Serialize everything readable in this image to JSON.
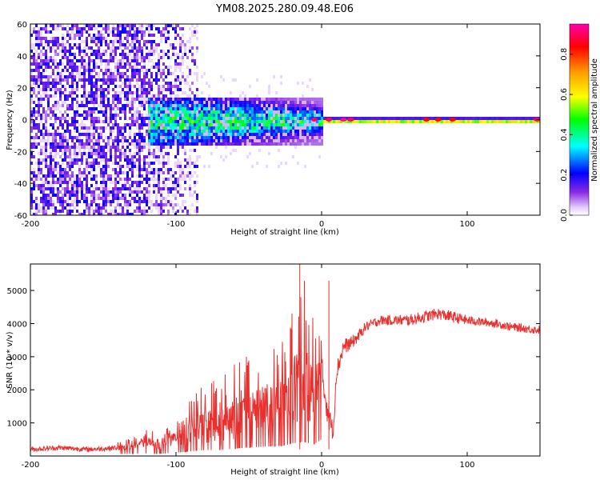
{
  "title": "YM08.2025.280.09.48.E06",
  "chart_data": [
    {
      "type": "heatmap",
      "xlabel": "Height of straight line (km)",
      "ylabel": "Frequency (Hz)",
      "xlim": [
        -200,
        150
      ],
      "ylim": [
        -60,
        60
      ],
      "xticks": [
        -200,
        -100,
        0,
        100
      ],
      "yticks": [
        60,
        40,
        20,
        0,
        -20,
        -40,
        -60
      ],
      "colorbar": {
        "label": "Normalized spectral amplitude",
        "range": [
          0,
          0.95
        ],
        "ticks": [
          0.0,
          0.2,
          0.4,
          0.6,
          0.8
        ],
        "tick_labels": [
          "0.0",
          "0.2",
          "0.4",
          "0.6",
          "0.8"
        ]
      },
      "regions": [
        {
          "name": "broadband noise",
          "x_range": [
            -200,
            -85
          ],
          "freq_range": [
            -60,
            60
          ],
          "amplitude": 0.15
        },
        {
          "name": "transition",
          "x_range": [
            -120,
            0
          ],
          "freq_range": [
            -15,
            15
          ],
          "amplitude": 0.25
        },
        {
          "name": "narrow band",
          "x_range": [
            0,
            150
          ],
          "freq_range": [
            -2,
            2
          ],
          "amplitude": 0.5
        }
      ],
      "peaks": [
        {
          "x": -5,
          "freq": 0,
          "amplitude": 0.9
        },
        {
          "x": 5,
          "freq": 0,
          "amplitude": 0.9
        },
        {
          "x": 15,
          "freq": 0,
          "amplitude": 0.95
        },
        {
          "x": 20,
          "freq": 0,
          "amplitude": 0.9
        },
        {
          "x": 72,
          "freq": 0,
          "amplitude": 0.85
        },
        {
          "x": 80,
          "freq": 0,
          "amplitude": 0.85
        },
        {
          "x": 90,
          "freq": 0,
          "amplitude": 0.85
        },
        {
          "x": 148,
          "freq": 0,
          "amplitude": 0.9
        }
      ]
    },
    {
      "type": "line",
      "xlabel": "Height of straight line (km)",
      "ylabel": "SNR (10 * v/v)",
      "xlim": [
        -200,
        150
      ],
      "ylim": [
        0,
        5800
      ],
      "xticks": [
        -200,
        -100,
        0,
        100
      ],
      "yticks": [
        1000,
        2000,
        3000,
        4000,
        5000
      ],
      "color": "#e8302e",
      "series": [
        {
          "name": "SNR",
          "x": [
            -200,
            -180,
            -160,
            -140,
            -130,
            -120,
            -110,
            -100,
            -90,
            -80,
            -70,
            -60,
            -50,
            -40,
            -30,
            -25,
            -20,
            -15,
            -12,
            -10,
            -5,
            0,
            5,
            8,
            10,
            15,
            20,
            25,
            30,
            40,
            50,
            60,
            70,
            80,
            90,
            100,
            110,
            120,
            130,
            140,
            150
          ],
          "values": [
            200,
            250,
            200,
            250,
            300,
            400,
            350,
            500,
            700,
            900,
            900,
            1100,
            1300,
            1400,
            1500,
            1600,
            1900,
            2100,
            2200,
            2000,
            1800,
            2500,
            1200,
            700,
            2500,
            3300,
            3400,
            3600,
            3900,
            4100,
            4100,
            4100,
            4200,
            4300,
            4200,
            4100,
            4050,
            4000,
            3900,
            3850,
            3800
          ],
          "spread": [
            150,
            150,
            150,
            150,
            200,
            300,
            300,
            500,
            800,
            1000,
            1100,
            1300,
            1400,
            1500,
            1600,
            1800,
            2000,
            2200,
            2500,
            2300,
            1800,
            1200,
            900,
            500,
            600,
            500,
            400,
            350,
            300,
            300,
            300,
            350,
            350,
            350,
            350,
            300,
            250,
            250,
            250,
            250,
            250
          ]
        }
      ],
      "annotations": [
        {
          "x": -15,
          "value": 5800,
          "label": "spike"
        },
        {
          "x": 5,
          "value": 5300,
          "label": "spike"
        }
      ]
    }
  ]
}
